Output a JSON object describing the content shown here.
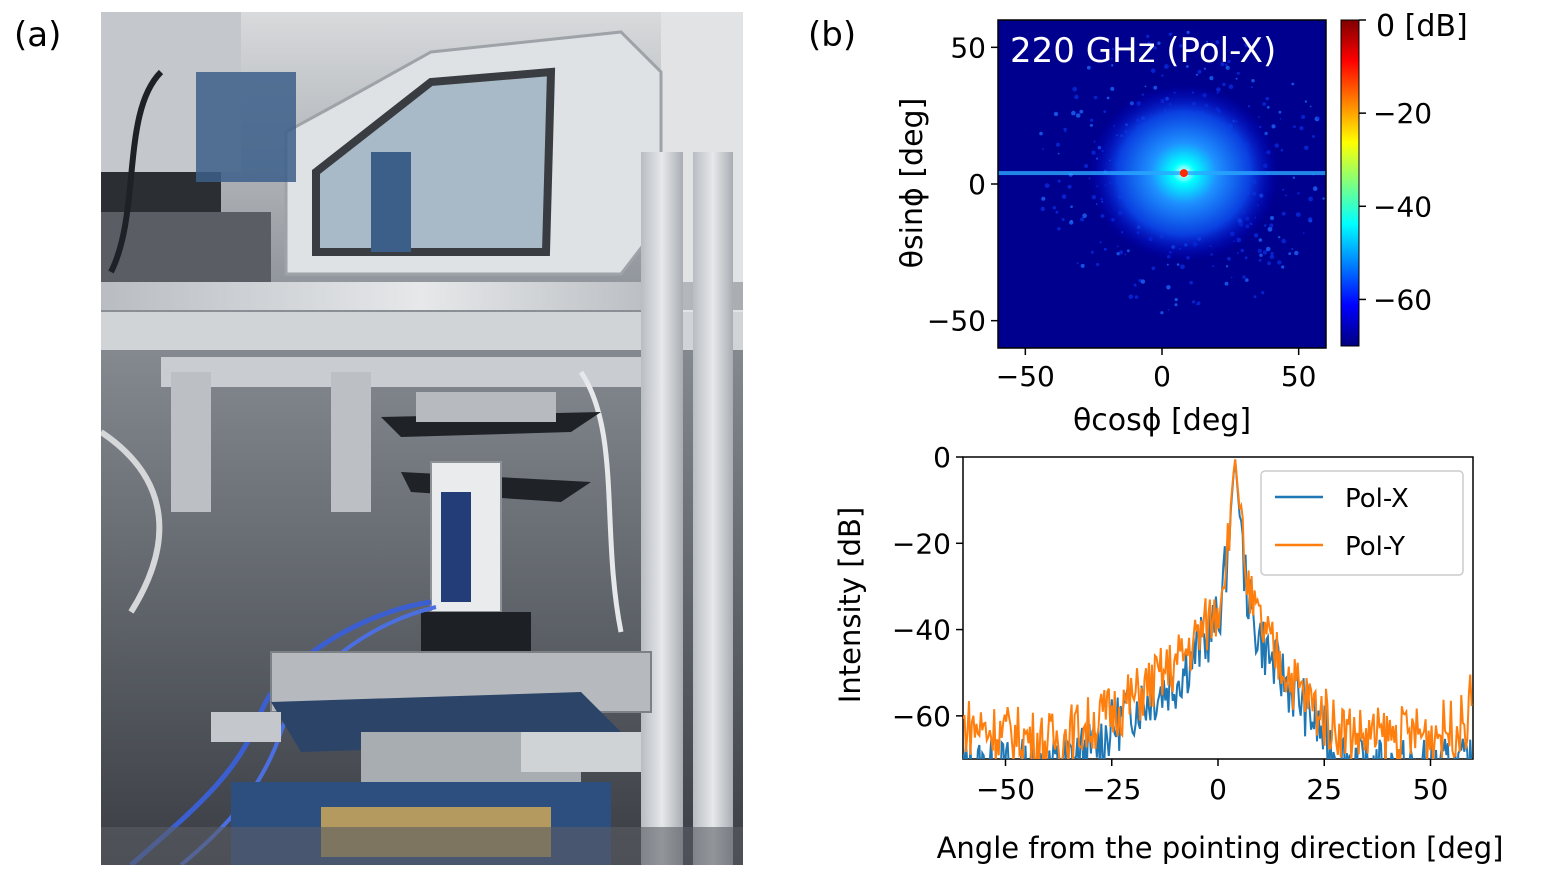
{
  "panel_labels": {
    "a": "(a)",
    "b": "(b)"
  },
  "photo": {
    "subject": "antenna-measurement-setup-photo",
    "colors": {
      "frame": "#c9ccd0",
      "absorber": "#3c5f8a",
      "background": "#4a4e55"
    }
  },
  "chart_data": [
    {
      "type": "heatmap",
      "title": "220 GHz (Pol-X)",
      "xlabel": "θcosϕ [deg]",
      "ylabel": "θsinϕ [deg]",
      "xlim": [
        -60,
        60
      ],
      "ylim": [
        -60,
        60
      ],
      "xticks": [
        -50,
        0,
        50
      ],
      "yticks": [
        -50,
        0,
        50
      ],
      "xtick_labels": [
        "−50",
        "0",
        "50"
      ],
      "ytick_labels": [
        "−50",
        "0",
        "50"
      ],
      "colorbar": {
        "label": "0 [dB]",
        "range": [
          -70,
          0
        ],
        "ticks": [
          0,
          -20,
          -40,
          -60
        ],
        "tick_labels": [
          "−20",
          "−40",
          "−60"
        ],
        "colormap": "jet"
      },
      "peak": {
        "x": 8,
        "y": 4,
        "value": 0
      },
      "features": {
        "horizontal_streak_y": 4,
        "background_level": -65
      }
    },
    {
      "type": "line",
      "xlabel": "Angle from the pointing direction [deg]",
      "ylabel": "Intensity [dB]",
      "xlim": [
        -60,
        60
      ],
      "ylim": [
        -70,
        0
      ],
      "xticks": [
        -50,
        -25,
        0,
        25,
        50
      ],
      "yticks": [
        0,
        -20,
        -40,
        -60
      ],
      "xtick_labels": [
        "−50",
        "−25",
        "0",
        "25",
        "50"
      ],
      "ytick_labels": [
        "0",
        "−20",
        "−40",
        "−60"
      ],
      "legend_position": "top-right",
      "peak_x": 4,
      "series": [
        {
          "name": "Pol-X",
          "color": "#1f77b4",
          "envelope": [
            [
              -60,
              -72
            ],
            [
              -40,
              -72
            ],
            [
              -30,
              -68
            ],
            [
              -20,
              -58
            ],
            [
              -10,
              -52
            ],
            [
              -5,
              -45
            ],
            [
              0,
              -38
            ],
            [
              2,
              -25
            ],
            [
              4,
              0
            ],
            [
              6,
              -25
            ],
            [
              8,
              -38
            ],
            [
              13,
              -48
            ],
            [
              20,
              -57
            ],
            [
              27,
              -68
            ],
            [
              35,
              -72
            ],
            [
              60,
              -72
            ]
          ]
        },
        {
          "name": "Pol-Y",
          "color": "#ff7f0e",
          "envelope": [
            [
              -60,
              -62
            ],
            [
              -50,
              -64
            ],
            [
              -40,
              -66
            ],
            [
              -30,
              -62
            ],
            [
              -20,
              -56
            ],
            [
              -10,
              -48
            ],
            [
              -5,
              -42
            ],
            [
              0,
              -35
            ],
            [
              2,
              -22
            ],
            [
              4,
              0
            ],
            [
              6,
              -22
            ],
            [
              8,
              -35
            ],
            [
              13,
              -45
            ],
            [
              20,
              -55
            ],
            [
              27,
              -62
            ],
            [
              35,
              -65
            ],
            [
              50,
              -64
            ],
            [
              58,
              -62
            ],
            [
              60,
              -55
            ]
          ]
        }
      ]
    }
  ]
}
